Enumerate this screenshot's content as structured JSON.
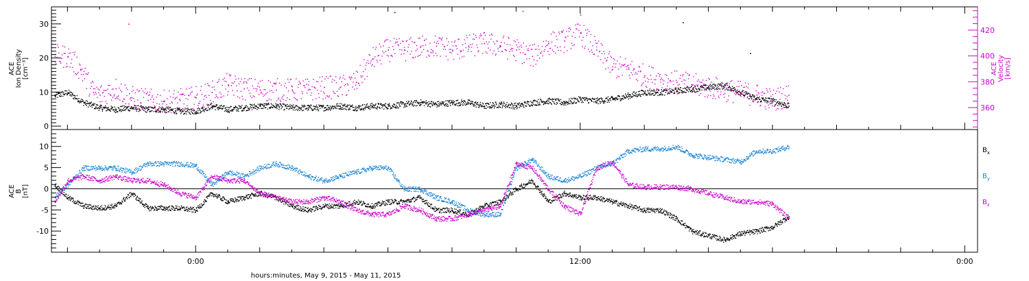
{
  "xaxis": {
    "title": "hours:minutes, May  9, 2015 - May 11, 2015",
    "tick_labels": [
      {
        "t": 0,
        "label": "0:00"
      },
      {
        "t": 12,
        "label": "12:00"
      },
      {
        "t": 24,
        "label": "0:00"
      }
    ]
  },
  "chart_data": [
    {
      "type": "scatter",
      "panel": "top",
      "xlim": [
        -4.5,
        24.4
      ],
      "ylabel_left": [
        "ACE",
        "Ion Density",
        "[cm⁻³]"
      ],
      "ylabel_right": [
        "ACE",
        "Velocity",
        "[km/s]"
      ],
      "ylim_left": [
        -1,
        35
      ],
      "yticks_left": [
        0,
        10,
        20,
        30
      ],
      "ylim_right": [
        343,
        438
      ],
      "yticks_right": [
        360,
        380,
        400,
        420
      ],
      "series": [
        {
          "axis": "left",
          "color": "#000000",
          "x": [
            -4.4,
            -4.0,
            -3.5,
            -3.0,
            -2.5,
            -2.0,
            -1.5,
            -1.0,
            -0.5,
            0.0,
            0.5,
            1.0,
            1.5,
            2.0,
            2.5,
            3.0,
            3.5,
            4.0,
            4.5,
            5.0,
            5.5,
            6.0,
            6.5,
            7.0,
            7.5,
            8.0,
            8.5,
            9.0,
            9.5,
            10.0,
            10.5,
            11.0,
            11.5,
            12.0,
            12.5,
            13.0,
            13.5,
            14.0,
            14.5,
            15.0,
            15.5,
            16.0,
            16.5,
            17.0,
            17.5,
            18.0,
            18.5
          ],
          "y": [
            9,
            10,
            7,
            5.5,
            5,
            5.5,
            5,
            5,
            4.5,
            4.5,
            6,
            5,
            5.5,
            6,
            6,
            5.5,
            5.5,
            5.5,
            6,
            5.5,
            6,
            6,
            6.5,
            7,
            6.5,
            7,
            7,
            6,
            6.5,
            6,
            7,
            7.5,
            7,
            8,
            7.5,
            8,
            9,
            10,
            10,
            10.5,
            11,
            11.5,
            12,
            10,
            8,
            7.5,
            6
          ]
        },
        {
          "axis": "right",
          "color": "#cc00cc",
          "x": [
            -4.4,
            -4.0,
            -3.6,
            -3.2,
            -3.0,
            -2.5,
            -2.0,
            -1.5,
            -1.0,
            -0.5,
            0.0,
            0.5,
            1.0,
            1.5,
            2.0,
            2.5,
            3.0,
            3.5,
            4.0,
            4.5,
            5.0,
            5.5,
            6.0,
            6.5,
            7.0,
            7.5,
            8.0,
            8.5,
            9.0,
            9.5,
            10.0,
            10.5,
            11.0,
            11.5,
            12.0,
            12.5,
            13.0,
            13.5,
            14.0,
            14.5,
            15.0,
            15.5,
            16.0,
            16.5,
            17.0,
            17.5,
            18.0,
            18.5
          ],
          "y": [
            400,
            400,
            390,
            372,
            370,
            375,
            368,
            366,
            365,
            366,
            368,
            372,
            378,
            375,
            374,
            374,
            374,
            374,
            376,
            376,
            380,
            398,
            405,
            405,
            407,
            408,
            405,
            408,
            410,
            408,
            405,
            400,
            410,
            412,
            418,
            405,
            392,
            390,
            385,
            382,
            380,
            378,
            376,
            374,
            372,
            370,
            366,
            370
          ]
        }
      ],
      "extra_points": [
        {
          "axis": "left",
          "x": 6.2,
          "y": 33.5
        },
        {
          "axis": "left",
          "x": 15.2,
          "y": 30.5
        },
        {
          "axis": "left",
          "x": 17.3,
          "y": 21.5
        },
        {
          "axis": "right",
          "x": -2.1,
          "y": 425
        },
        {
          "axis": "right",
          "x": 10.2,
          "y": 435
        },
        {
          "axis": "right",
          "x": 12.0,
          "y": 432
        }
      ]
    },
    {
      "type": "scatter",
      "panel": "bottom",
      "xlim": [
        -4.5,
        24.4
      ],
      "ylabel_left": [
        "ACE",
        "B",
        "[nT]"
      ],
      "ylim": [
        -15,
        14
      ],
      "yticks": [
        -10,
        -5,
        0,
        5,
        10
      ],
      "zero_line": true,
      "legend_position": "right",
      "series": [
        {
          "name": "Bx",
          "color": "#000000",
          "x": [
            -4.4,
            -4.0,
            -3.5,
            -3.0,
            -2.5,
            -2.0,
            -1.5,
            -1.0,
            -0.5,
            0.0,
            0.5,
            1.0,
            1.5,
            2.0,
            2.5,
            3.0,
            3.5,
            4.0,
            4.5,
            5.0,
            5.5,
            6.0,
            6.5,
            7.0,
            7.5,
            8.0,
            8.5,
            9.0,
            9.5,
            10.0,
            10.5,
            11.0,
            11.5,
            12.0,
            12.5,
            13.0,
            13.5,
            14.0,
            14.5,
            15.0,
            15.5,
            16.0,
            16.5,
            17.0,
            17.5,
            18.0,
            18.5
          ],
          "y": [
            1,
            -2,
            -4,
            -4.5,
            -4,
            -1,
            -4.5,
            -4.5,
            -4.5,
            -5,
            -1,
            -3,
            -2,
            -1,
            -2,
            -4,
            -5,
            -4,
            -4,
            -3,
            -4,
            -3,
            -3,
            -2,
            -5,
            -5,
            -6,
            -4,
            -3,
            0,
            2,
            -3,
            -1,
            -2,
            -2,
            -3,
            -4,
            -5,
            -5,
            -7,
            -10,
            -11,
            -12,
            -10.5,
            -10,
            -9,
            -6.5
          ]
        },
        {
          "name": "By",
          "color": "#1a86d6",
          "x": [
            -4.4,
            -4.0,
            -3.5,
            -3.0,
            -2.5,
            -2.0,
            -1.5,
            -1.0,
            -0.5,
            0.0,
            0.5,
            1.0,
            1.5,
            2.0,
            2.5,
            3.0,
            3.5,
            4.0,
            4.5,
            5.0,
            5.5,
            6.0,
            6.5,
            7.0,
            7.5,
            8.0,
            8.5,
            9.0,
            9.5,
            10.0,
            10.5,
            11.0,
            11.5,
            12.0,
            12.5,
            13.0,
            13.5,
            14.0,
            14.5,
            15.0,
            15.5,
            16.0,
            16.5,
            17.0,
            17.5,
            18.0,
            18.5
          ],
          "y": [
            -2,
            1,
            5,
            5,
            5,
            4,
            6,
            6,
            6,
            5.5,
            1,
            4,
            3,
            5,
            6,
            5,
            3,
            2,
            3,
            4,
            5,
            5,
            0,
            0,
            -2,
            -3,
            -5,
            -6,
            -6,
            5,
            7,
            3,
            2,
            3,
            5,
            6,
            9,
            9.5,
            9.5,
            10,
            8,
            7.5,
            7,
            6.5,
            9,
            9,
            10
          ]
        },
        {
          "name": "Bz",
          "color": "#cc00cc",
          "x": [
            -4.4,
            -4.0,
            -3.5,
            -3.0,
            -2.5,
            -2.0,
            -1.5,
            -1.0,
            -0.5,
            0.0,
            0.5,
            1.0,
            1.5,
            2.0,
            2.5,
            3.0,
            3.5,
            4.0,
            4.5,
            5.0,
            5.5,
            6.0,
            6.5,
            7.0,
            7.5,
            8.0,
            8.5,
            9.0,
            9.5,
            10.0,
            10.5,
            11.0,
            11.5,
            12.0,
            12.5,
            13.0,
            13.5,
            14.0,
            14.5,
            15.0,
            15.5,
            16.0,
            16.5,
            17.0,
            17.5,
            18.0,
            18.5
          ],
          "y": [
            -3,
            2,
            3,
            2,
            3,
            2,
            2,
            1,
            -1,
            -2,
            3,
            2,
            2,
            -1,
            -2,
            -3,
            -3,
            -2,
            -3,
            -5,
            -6,
            -6,
            -4,
            -5,
            -7,
            -7,
            -6,
            -5,
            -4,
            6,
            5,
            0,
            -4,
            -6,
            5,
            6.5,
            1,
            0.5,
            0.5,
            0.5,
            0,
            -1,
            -2,
            -3,
            -3,
            -3.5,
            -7
          ]
        }
      ]
    }
  ]
}
